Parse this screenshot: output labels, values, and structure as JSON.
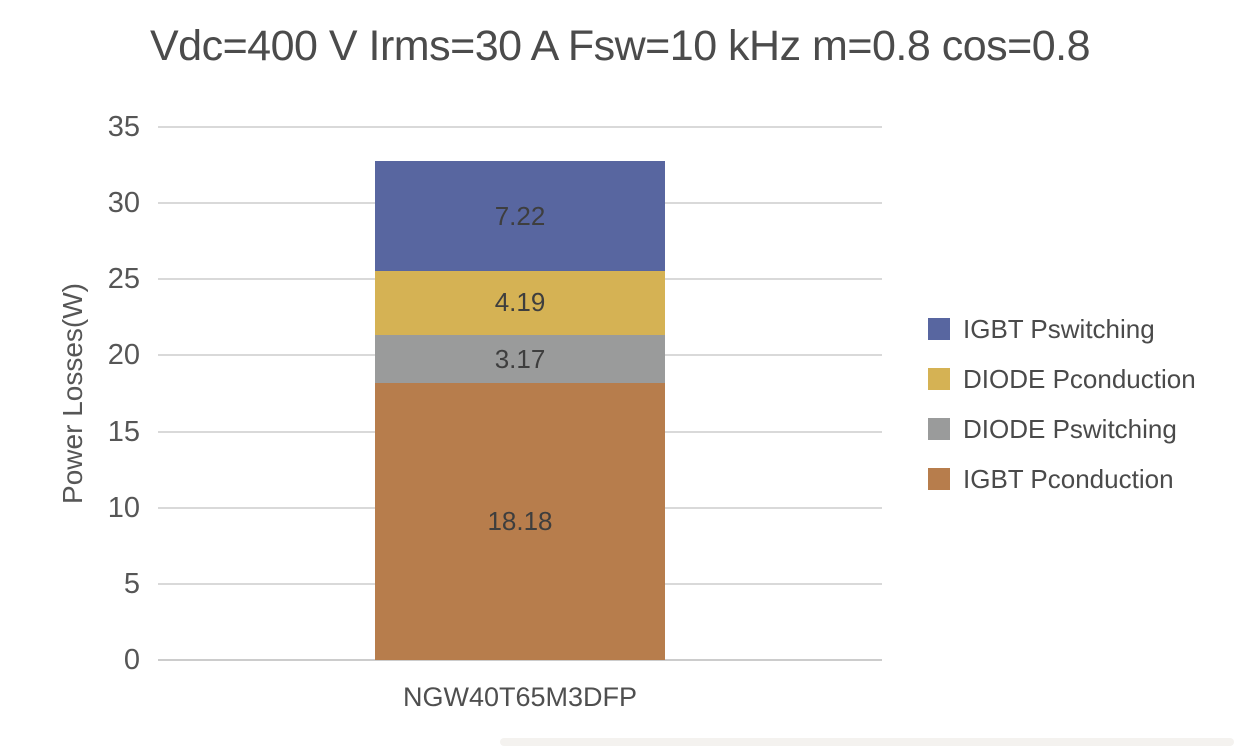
{
  "page": {
    "background": "#ffffff"
  },
  "chart_data": {
    "type": "bar",
    "stacked": true,
    "title": "Vdc=400 V Irms=30 A Fsw=10 kHz m=0.8 cos=0.8",
    "categories": [
      "NGW40T65M3DFP"
    ],
    "series": [
      {
        "name": "IGBT Pconduction",
        "values": [
          18.18
        ],
        "label": "18.18",
        "color": "#b77d4c"
      },
      {
        "name": "DIODE Pswitching",
        "values": [
          3.17
        ],
        "label": "3.17",
        "color": "#9a9b9b"
      },
      {
        "name": "DIODE Pconduction",
        "values": [
          4.19
        ],
        "label": "4.19",
        "color": "#d5b254"
      },
      {
        "name": "IGBT Pswitching",
        "values": [
          7.22
        ],
        "label": "7.22",
        "color": "#5866a0"
      }
    ],
    "legend": [
      {
        "label": "IGBT Pswitching",
        "color": "#5866a0"
      },
      {
        "label": "DIODE Pconduction",
        "color": "#d5b254"
      },
      {
        "label": "DIODE Pswitching",
        "color": "#9a9b9b"
      },
      {
        "label": "IGBT Pconduction",
        "color": "#b77d4c"
      }
    ],
    "legend_position": "right",
    "xlabel": "",
    "ylabel": "Power Losses(W)",
    "ylim": [
      0,
      35
    ],
    "yticks": [
      0,
      5,
      10,
      15,
      20,
      25,
      30,
      35
    ],
    "grid": true,
    "gridline_color": "#d9d9d9",
    "zero_line_color": "#cccccc",
    "axis_text_color": "#565656"
  }
}
